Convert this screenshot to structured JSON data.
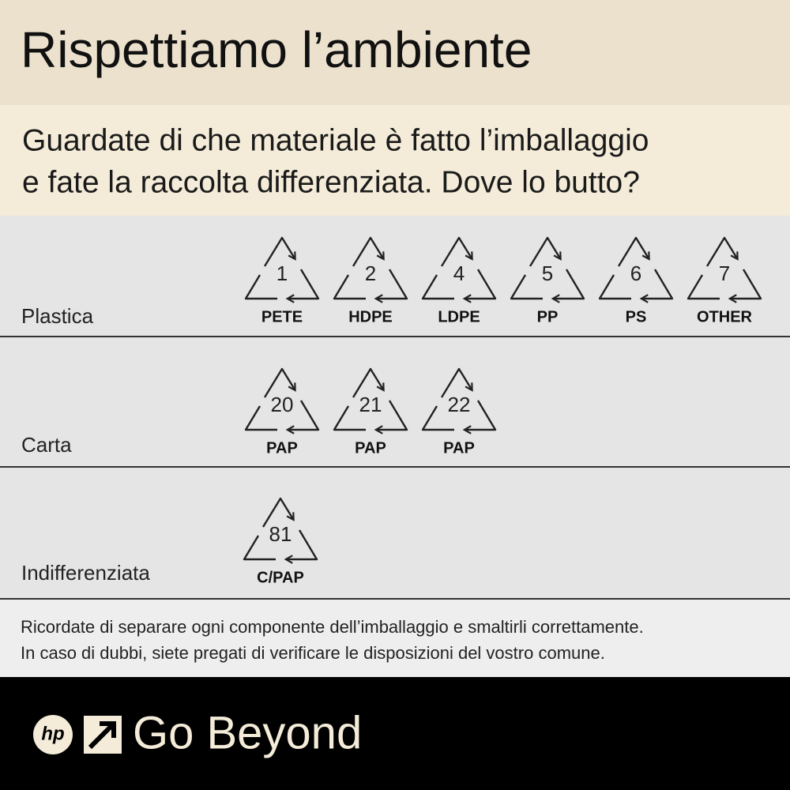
{
  "header": {
    "title": "Rispettiamo l’ambiente"
  },
  "subtitle": {
    "lines": [
      "Guardate di che materiale è fatto l’imballaggio",
      "e fate la raccolta differenziata.  Dove lo butto?"
    ]
  },
  "categories": [
    {
      "name": "Plastica",
      "items": [
        {
          "code": "1",
          "label": "PETE"
        },
        {
          "code": "2",
          "label": "HDPE"
        },
        {
          "code": "4",
          "label": "LDPE"
        },
        {
          "code": "5",
          "label": "PP"
        },
        {
          "code": "6",
          "label": "PS"
        },
        {
          "code": "7",
          "label": "OTHER"
        }
      ]
    },
    {
      "name": "Carta",
      "items": [
        {
          "code": "20",
          "label": "PAP"
        },
        {
          "code": "21",
          "label": "PAP"
        },
        {
          "code": "22",
          "label": "PAP"
        }
      ]
    },
    {
      "name": "Indifferenziata",
      "items": [
        {
          "code": "81",
          "label": "C/PAP"
        }
      ]
    }
  ],
  "note": {
    "lines": [
      "Ricordate di separare ogni componente dell’imballaggio e smaltirli correttamente.",
      "In caso di dubbi, siete pregati di verificare le disposizioni del vostro comune."
    ]
  },
  "footer": {
    "logo": "hp",
    "tagline": "Go Beyond"
  }
}
